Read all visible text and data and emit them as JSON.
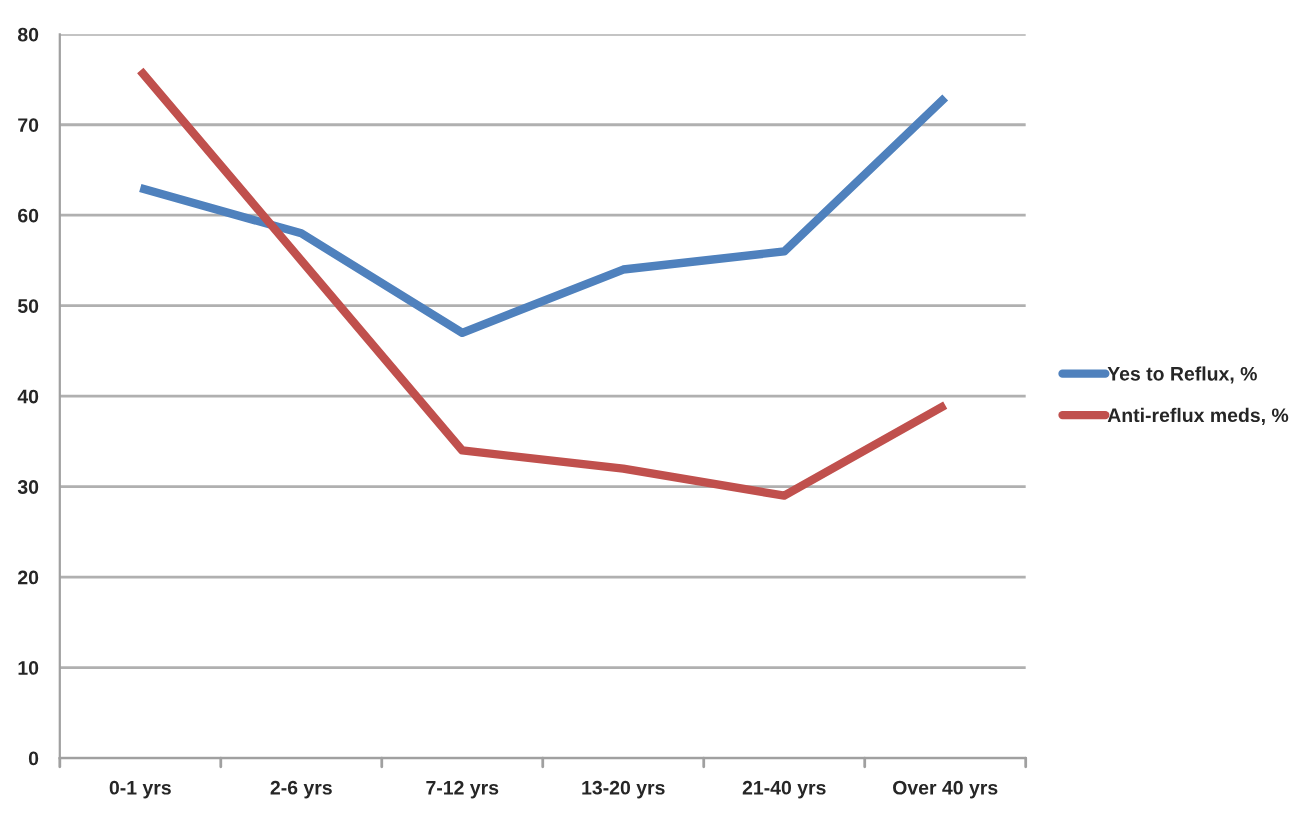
{
  "chart_data": {
    "type": "line",
    "categories": [
      "0-1 yrs",
      "2-6 yrs",
      "7-12 yrs",
      "13-20 yrs",
      "21-40 yrs",
      "Over 40 yrs"
    ],
    "series": [
      {
        "name": "Yes to Reflux, %",
        "color": "#4f81bd",
        "values": [
          63,
          58,
          47,
          54,
          56,
          73
        ]
      },
      {
        "name": "Anti-reflux meds, %",
        "color": "#c0504d",
        "values": [
          76,
          55,
          34,
          32,
          29,
          39
        ]
      }
    ],
    "ylim": [
      0,
      80
    ],
    "yticks": [
      0,
      10,
      20,
      30,
      40,
      50,
      60,
      70,
      80
    ],
    "grid": "y",
    "legend": "right",
    "marker": "none",
    "line_style": "solid"
  }
}
